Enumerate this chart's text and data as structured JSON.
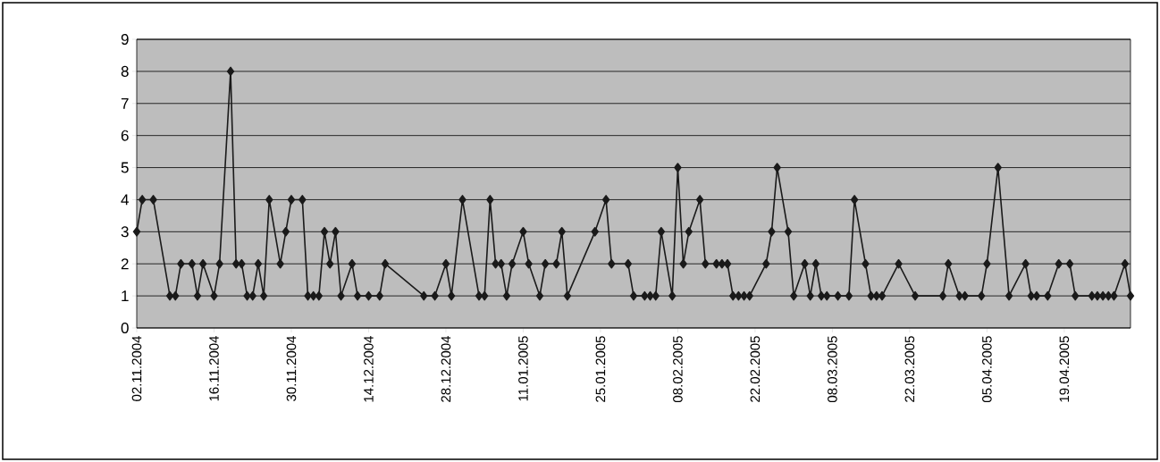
{
  "chart_data": {
    "type": "line",
    "color": "#1a1a1a",
    "marker": "diamond",
    "line_style": "solid",
    "grid": "y",
    "xlim": [
      "2004-11-02",
      "2005-05-01"
    ],
    "ylim": [
      0,
      9
    ],
    "yticks": [
      0,
      1,
      2,
      3,
      4,
      5,
      6,
      7,
      8,
      9
    ],
    "xticks": [
      {
        "value": "2004-11-02",
        "label": "02.11.2004"
      },
      {
        "value": "2004-11-16",
        "label": "16.11.2004"
      },
      {
        "value": "2004-11-30",
        "label": "30.11.2004"
      },
      {
        "value": "2004-12-14",
        "label": "14.12.2004"
      },
      {
        "value": "2004-12-28",
        "label": "28.12.2004"
      },
      {
        "value": "2005-01-11",
        "label": "11.01.2005"
      },
      {
        "value": "2005-01-25",
        "label": "25.01.2005"
      },
      {
        "value": "2005-02-08",
        "label": "08.02.2005"
      },
      {
        "value": "2005-02-22",
        "label": "22.02.2005"
      },
      {
        "value": "2005-03-08",
        "label": "08.03.2005"
      },
      {
        "value": "2005-03-22",
        "label": "22.03.2005"
      },
      {
        "value": "2005-04-05",
        "label": "05.04.2005"
      },
      {
        "value": "2005-04-19",
        "label": "19.04.2005"
      }
    ],
    "x": [
      "2004-11-02",
      "2004-11-03",
      "2004-11-05",
      "2004-11-08",
      "2004-11-09",
      "2004-11-10",
      "2004-11-12",
      "2004-11-13",
      "2004-11-14",
      "2004-11-16",
      "2004-11-17",
      "2004-11-19",
      "2004-11-20",
      "2004-11-21",
      "2004-11-22",
      "2004-11-23",
      "2004-11-24",
      "2004-11-25",
      "2004-11-26",
      "2004-11-28",
      "2004-11-29",
      "2004-11-30",
      "2004-12-02",
      "2004-12-03",
      "2004-12-04",
      "2004-12-05",
      "2004-12-06",
      "2004-12-07",
      "2004-12-08",
      "2004-12-09",
      "2004-12-11",
      "2004-12-12",
      "2004-12-14",
      "2004-12-16",
      "2004-12-17",
      "2004-12-24",
      "2004-12-26",
      "2004-12-28",
      "2004-12-29",
      "2004-12-31",
      "2005-01-03",
      "2005-01-04",
      "2005-01-05",
      "2005-01-06",
      "2005-01-07",
      "2005-01-08",
      "2005-01-09",
      "2005-01-11",
      "2005-01-12",
      "2005-01-14",
      "2005-01-15",
      "2005-01-17",
      "2005-01-18",
      "2005-01-19",
      "2005-01-24",
      "2005-01-26",
      "2005-01-27",
      "2005-01-30",
      "2005-01-31",
      "2005-02-02",
      "2005-02-03",
      "2005-02-04",
      "2005-02-05",
      "2005-02-07",
      "2005-02-08",
      "2005-02-09",
      "2005-02-10",
      "2005-02-12",
      "2005-02-13",
      "2005-02-15",
      "2005-02-16",
      "2005-02-17",
      "2005-02-18",
      "2005-02-19",
      "2005-02-20",
      "2005-02-21",
      "2005-02-24",
      "2005-02-25",
      "2005-02-26",
      "2005-02-28",
      "2005-03-01",
      "2005-03-03",
      "2005-03-04",
      "2005-03-05",
      "2005-03-06",
      "2005-03-07",
      "2005-03-09",
      "2005-03-11",
      "2005-03-12",
      "2005-03-14",
      "2005-03-15",
      "2005-03-16",
      "2005-03-17",
      "2005-03-20",
      "2005-03-23",
      "2005-03-28",
      "2005-03-29",
      "2005-03-31",
      "2005-04-01",
      "2005-04-04",
      "2005-04-05",
      "2005-04-07",
      "2005-04-09",
      "2005-04-12",
      "2005-04-13",
      "2005-04-14",
      "2005-04-16",
      "2005-04-18",
      "2005-04-20",
      "2005-04-21",
      "2005-04-24",
      "2005-04-25",
      "2005-04-26",
      "2005-04-27",
      "2005-04-28",
      "2005-04-30",
      "2005-05-01"
    ],
    "values": [
      3,
      4,
      4,
      1,
      1,
      2,
      2,
      1,
      2,
      1,
      2,
      8,
      2,
      2,
      1,
      1,
      2,
      1,
      4,
      2,
      3,
      4,
      4,
      1,
      1,
      1,
      3,
      2,
      3,
      1,
      2,
      1,
      1,
      1,
      2,
      1,
      1,
      2,
      1,
      4,
      1,
      1,
      4,
      2,
      2,
      1,
      2,
      3,
      2,
      1,
      2,
      2,
      3,
      1,
      3,
      4,
      2,
      2,
      1,
      1,
      1,
      1,
      3,
      1,
      5,
      2,
      3,
      4,
      2,
      2,
      2,
      2,
      1,
      1,
      1,
      1,
      2,
      3,
      5,
      3,
      1,
      2,
      1,
      2,
      1,
      1,
      1,
      1,
      4,
      2,
      1,
      1,
      1,
      2,
      1,
      1,
      2,
      1,
      1,
      1,
      2,
      5,
      1,
      2,
      1,
      1,
      1,
      2,
      2,
      1,
      1,
      1,
      1,
      1,
      1,
      2,
      1
    ]
  }
}
